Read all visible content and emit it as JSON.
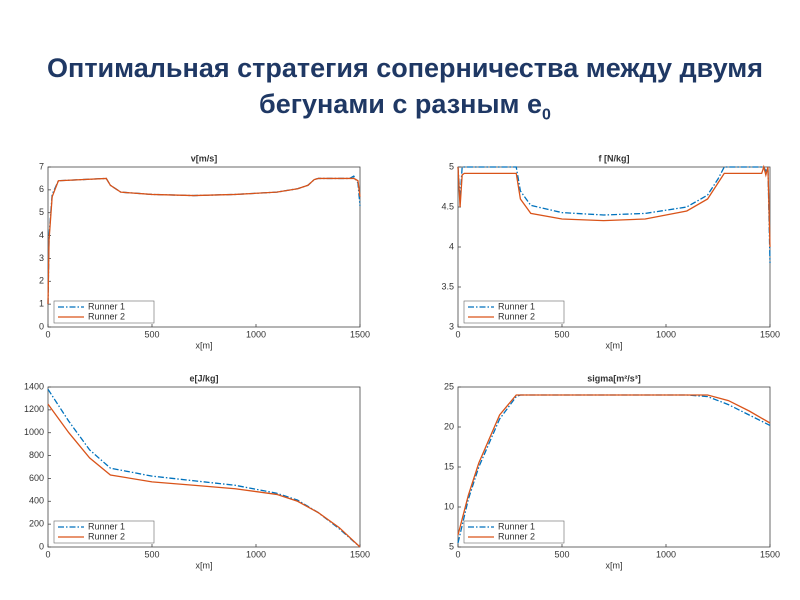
{
  "title": "Оптимальная стратегия соперничества между двумя бегунами с разным e",
  "title_subscript": "0",
  "chart_data": [
    {
      "type": "line",
      "title": "v[m/s]",
      "xlabel": "x[m]",
      "xlim": [
        0,
        1500
      ],
      "xticks": [
        0,
        500,
        1000,
        1500
      ],
      "ylim": [
        0,
        7
      ],
      "yticks": [
        0,
        1,
        2,
        3,
        4,
        5,
        6,
        7
      ],
      "legend": "lower left",
      "x": [
        0,
        5,
        20,
        50,
        280,
        300,
        350,
        500,
        700,
        900,
        1100,
        1200,
        1250,
        1280,
        1300,
        1450,
        1470,
        1490,
        1500
      ],
      "series": [
        {
          "name": "Runner 1",
          "color": "#0072bd",
          "line_style": "dash-dot",
          "values": [
            1.0,
            4.0,
            5.8,
            6.4,
            6.5,
            6.2,
            5.9,
            5.8,
            5.75,
            5.8,
            5.9,
            6.05,
            6.2,
            6.45,
            6.5,
            6.5,
            6.6,
            6.3,
            5.3
          ]
        },
        {
          "name": "Runner 2",
          "color": "#d95319",
          "line_style": "solid",
          "values": [
            1.0,
            3.8,
            5.7,
            6.4,
            6.5,
            6.2,
            5.9,
            5.8,
            5.75,
            5.8,
            5.9,
            6.05,
            6.2,
            6.45,
            6.5,
            6.5,
            6.5,
            6.4,
            5.7
          ]
        }
      ]
    },
    {
      "type": "line",
      "title": "f [N/kg]",
      "xlabel": "x[m]",
      "xlim": [
        0,
        1500
      ],
      "xticks": [
        0,
        500,
        1000,
        1500
      ],
      "ylim": [
        3,
        5
      ],
      "yticks": [
        3,
        3.5,
        4,
        4.5,
        5
      ],
      "legend": "lower left",
      "x": [
        0,
        10,
        20,
        30,
        280,
        300,
        350,
        500,
        700,
        900,
        1100,
        1200,
        1250,
        1280,
        1460,
        1470,
        1480,
        1490,
        1500
      ],
      "series": [
        {
          "name": "Runner 1",
          "color": "#0072bd",
          "line_style": "dash-dot",
          "values": [
            5,
            4.6,
            5,
            5,
            5,
            4.7,
            4.52,
            4.43,
            4.4,
            4.42,
            4.5,
            4.65,
            4.85,
            5,
            5,
            5,
            4.95,
            5,
            3.8
          ]
        },
        {
          "name": "Runner 2",
          "color": "#d95319",
          "line_style": "solid",
          "values": [
            5,
            4.5,
            4.9,
            4.92,
            4.92,
            4.6,
            4.42,
            4.35,
            4.33,
            4.35,
            4.45,
            4.6,
            4.8,
            4.92,
            4.92,
            5,
            4.9,
            5,
            4.0
          ]
        }
      ]
    },
    {
      "type": "line",
      "title": "e[J/kg]",
      "xlabel": "x[m]",
      "xlim": [
        0,
        1500
      ],
      "xticks": [
        0,
        500,
        1000,
        1500
      ],
      "ylim": [
        0,
        1400
      ],
      "yticks": [
        0,
        200,
        400,
        600,
        800,
        1000,
        1200,
        1400
      ],
      "legend": "lower left",
      "x": [
        0,
        100,
        200,
        300,
        500,
        700,
        900,
        1100,
        1200,
        1300,
        1400,
        1500
      ],
      "series": [
        {
          "name": "Runner 1",
          "color": "#0072bd",
          "line_style": "dash-dot",
          "values": [
            1380,
            1100,
            850,
            690,
            620,
            580,
            540,
            470,
            410,
            300,
            160,
            0
          ]
        },
        {
          "name": "Runner 2",
          "color": "#d95319",
          "line_style": "solid",
          "values": [
            1250,
            1000,
            780,
            630,
            570,
            540,
            510,
            460,
            400,
            300,
            170,
            0
          ]
        }
      ]
    },
    {
      "type": "line",
      "title": "sigma[m²/s³]",
      "xlabel": "x[m]",
      "xlim": [
        0,
        1500
      ],
      "xticks": [
        0,
        500,
        1000,
        1500
      ],
      "ylim": [
        5,
        25
      ],
      "yticks": [
        5,
        10,
        15,
        20,
        25
      ],
      "legend": "lower left",
      "x": [
        0,
        50,
        100,
        200,
        280,
        300,
        1100,
        1200,
        1300,
        1400,
        1500
      ],
      "series": [
        {
          "name": "Runner 1",
          "color": "#0072bd",
          "line_style": "dash-dot",
          "values": [
            5.5,
            11,
            15,
            21,
            23.8,
            24,
            24,
            23.8,
            22.8,
            21.5,
            20.2
          ]
        },
        {
          "name": "Runner 2",
          "color": "#d95319",
          "line_style": "solid",
          "values": [
            6.5,
            11.5,
            15.5,
            21.5,
            24,
            24,
            24,
            24,
            23.3,
            22,
            20.5
          ]
        }
      ]
    }
  ]
}
